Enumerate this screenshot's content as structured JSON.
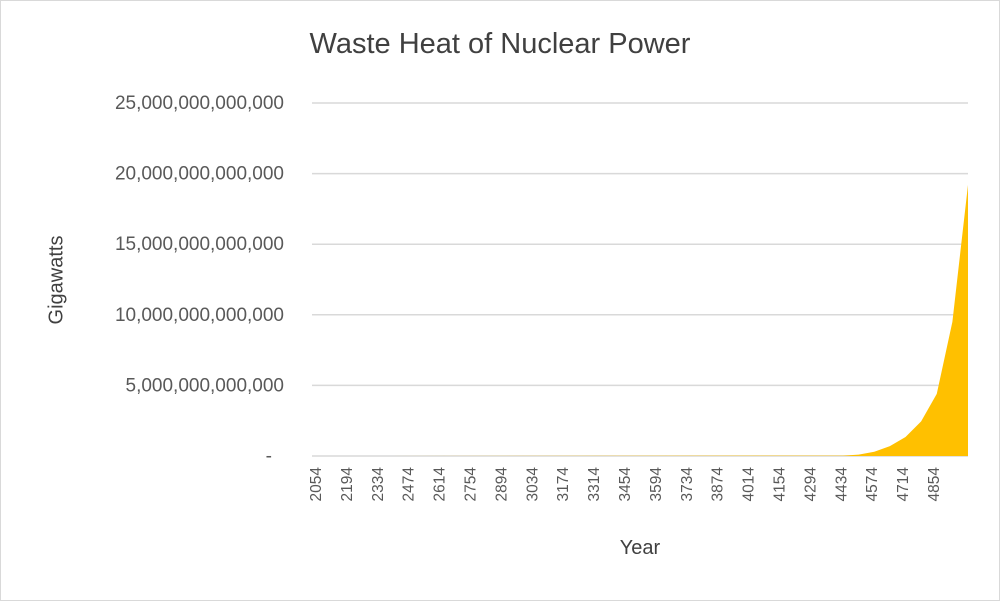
{
  "chart_data": {
    "type": "area",
    "title": "Waste Heat of Nuclear Power",
    "xlabel": "Year",
    "ylabel": "Gigawatts",
    "ylim": [
      0,
      25000000000000
    ],
    "y_tick_labels": [
      "-",
      "5,000,000,000,000",
      "10,000,000,000,000",
      "15,000,000,000,000",
      "20,000,000,000,000",
      "25,000,000,000,000"
    ],
    "x_tick_labels": [
      "2054",
      "2194",
      "2334",
      "2474",
      "2614",
      "2754",
      "2894",
      "3034",
      "3174",
      "3314",
      "3454",
      "3594",
      "3734",
      "3874",
      "4014",
      "4154",
      "4294",
      "4434",
      "4574",
      "4714",
      "4854"
    ],
    "grid": true,
    "colors": {
      "area": "#FFC000",
      "grid": "#d9d9d9",
      "text": "#595959"
    },
    "series": [
      {
        "x": [
          2054,
          4434,
          4504,
          4574,
          4644,
          4714,
          4784,
          4854,
          4924,
          4994
        ],
        "values": [
          0,
          30000000000,
          100000000000,
          300000000000,
          700000000000,
          1350000000000,
          2450000000000,
          4400000000000,
          9500000000000,
          19200000000000
        ]
      }
    ]
  }
}
